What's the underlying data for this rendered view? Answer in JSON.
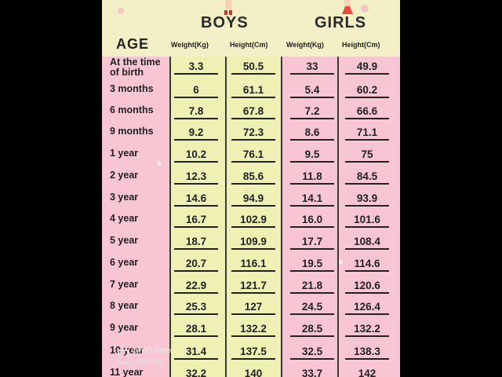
{
  "header": {
    "age_title": "AGE",
    "boys_title": "BOYS",
    "girls_title": "GIRLS",
    "weight_label": "Weight(Kg)",
    "height_label": "Height(Cm)"
  },
  "rows": [
    {
      "age": "At the time of birth",
      "boys_weight": "3.3",
      "boys_height": "50.5",
      "girls_weight": "33",
      "girls_height": "49.9"
    },
    {
      "age": "3 months",
      "boys_weight": "6",
      "boys_height": "61.1",
      "girls_weight": "5.4",
      "girls_height": "60.2"
    },
    {
      "age": "6 months",
      "boys_weight": "7.8",
      "boys_height": "67.8",
      "girls_weight": "7.2",
      "girls_height": "66.6"
    },
    {
      "age": "9 months",
      "boys_weight": "9.2",
      "boys_height": "72.3",
      "girls_weight": "8.6",
      "girls_height": "71.1"
    },
    {
      "age": "1 year",
      "boys_weight": "10.2",
      "boys_height": "76.1",
      "girls_weight": "9.5",
      "girls_height": "75"
    },
    {
      "age": "2 year",
      "boys_weight": "12.3",
      "boys_height": "85.6",
      "girls_weight": "11.8",
      "girls_height": "84.5"
    },
    {
      "age": "3 year",
      "boys_weight": "14.6",
      "boys_height": "94.9",
      "girls_weight": "14.1",
      "girls_height": "93.9"
    },
    {
      "age": "4 year",
      "boys_weight": "16.7",
      "boys_height": "102.9",
      "girls_weight": "16.0",
      "girls_height": "101.6"
    },
    {
      "age": "5 year",
      "boys_weight": "18.7",
      "boys_height": "109.9",
      "girls_weight": "17.7",
      "girls_height": "108.4"
    },
    {
      "age": "6 year",
      "boys_weight": "20.7",
      "boys_height": "116.1",
      "girls_weight": "19.5",
      "girls_height": "114.6"
    },
    {
      "age": "7 year",
      "boys_weight": "22.9",
      "boys_height": "121.7",
      "girls_weight": "21.8",
      "girls_height": "120.6"
    },
    {
      "age": "8 year",
      "boys_weight": "25.3",
      "boys_height": "127",
      "girls_weight": "24.5",
      "girls_height": "126.4"
    },
    {
      "age": "9 year",
      "boys_weight": "28.1",
      "boys_height": "132.2",
      "girls_weight": "28.5",
      "girls_height": "132.2"
    },
    {
      "age": "10 year",
      "boys_weight": "31.4",
      "boys_height": "137.5",
      "girls_weight": "32.5",
      "girls_height": "138.3"
    },
    {
      "age": "11 year",
      "boys_weight": "32.2",
      "boys_height": "140",
      "girls_weight": "33.7",
      "girls_height": "142"
    }
  ],
  "overlay": {
    "brand": "OPPO Reno",
    "timestamp": "2023/03/30"
  },
  "colors": {
    "pink": "#f8c6d3",
    "yellow": "#eef0b4",
    "cream": "#f3efc6",
    "background": "#000000"
  }
}
